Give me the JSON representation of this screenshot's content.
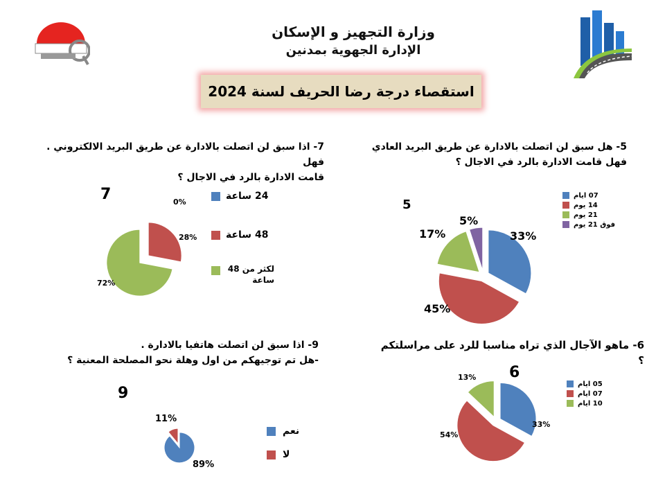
{
  "header": {
    "ministry": "وزارة التجهيز و الإسكان",
    "directorate": "الإدارة الجهوية بمدنين",
    "survey_title": "استقصاء درجة رضا الحريف لسنة 2024"
  },
  "colors": {
    "blue": "#4f81bd",
    "red": "#c0504d",
    "green": "#9bbb59",
    "purple": "#8064a2"
  },
  "chart_data": [
    {
      "id": "5",
      "type": "pie",
      "title": "5- هل سبق لن اتصلت بالادارة عن طريق البريد العادي فهل قامت الادارة بالرد في الاجال ؟",
      "question_lines": [
        "5- هل سبق لن اتصلت بالادارة عن طريق البريد العادي",
        "فهل قامت الادارة بالرد في الاجال ؟"
      ],
      "number_label": "5",
      "categories": [
        "07 ايام",
        "14 يوم",
        "21 يوم",
        "فوق 21 يوم"
      ],
      "values": [
        33,
        45,
        17,
        5
      ],
      "labels": [
        "33%",
        "45%",
        "17%",
        "5%"
      ],
      "legend_position": "top-right"
    },
    {
      "id": "7",
      "type": "pie",
      "title": "7- اذا سبق لن اتصلت بالادارة عن طريق البريد الالكتروني . فهل قامت الادارة بالرد في الاجال ؟",
      "question_lines": [
        "7- اذا سبق لن اتصلت بالادارة عن طريق البريد الالكتروني . فهل",
        "قامت الادارة بالرد في الاجال ؟"
      ],
      "number_label": "7",
      "categories": [
        "24 ساعة",
        "48 ساعة",
        "لكثر من 48 ساعة"
      ],
      "values": [
        0,
        28,
        72
      ],
      "labels": [
        "0%",
        "28%",
        "72%"
      ],
      "legend_position": "right"
    },
    {
      "id": "6",
      "type": "pie",
      "title": "6- ماهو الآجال الذي تراه مناسبا للرد على مراسلتكم ؟",
      "question_lines": [
        "6- ماهو الآجال الذي تراه مناسبا للرد على مراسلتكم ؟"
      ],
      "number_label": "6",
      "categories": [
        "05 ايام",
        "07 ايام",
        "10 ايام"
      ],
      "values": [
        33,
        54,
        13
      ],
      "labels": [
        "33%",
        "54%",
        "13%"
      ],
      "legend_position": "top-right"
    },
    {
      "id": "9",
      "type": "pie",
      "title": "9- اذا سبق لن اتصلت هاتفيا بالادارة . هل تم توجيهكم من اول وهلة نحو المصلحة المعنية ؟",
      "question_lines": [
        "9- اذا سبق لن اتصلت هاتفيا بالادارة .",
        "-هل تم توجيهكم من اول وهلة نحو المصلحة المعنية ؟"
      ],
      "number_label": "9",
      "categories": [
        "نعم",
        "لا"
      ],
      "values": [
        89,
        11
      ],
      "labels": [
        "89%",
        "11%"
      ],
      "legend_position": "right"
    }
  ]
}
